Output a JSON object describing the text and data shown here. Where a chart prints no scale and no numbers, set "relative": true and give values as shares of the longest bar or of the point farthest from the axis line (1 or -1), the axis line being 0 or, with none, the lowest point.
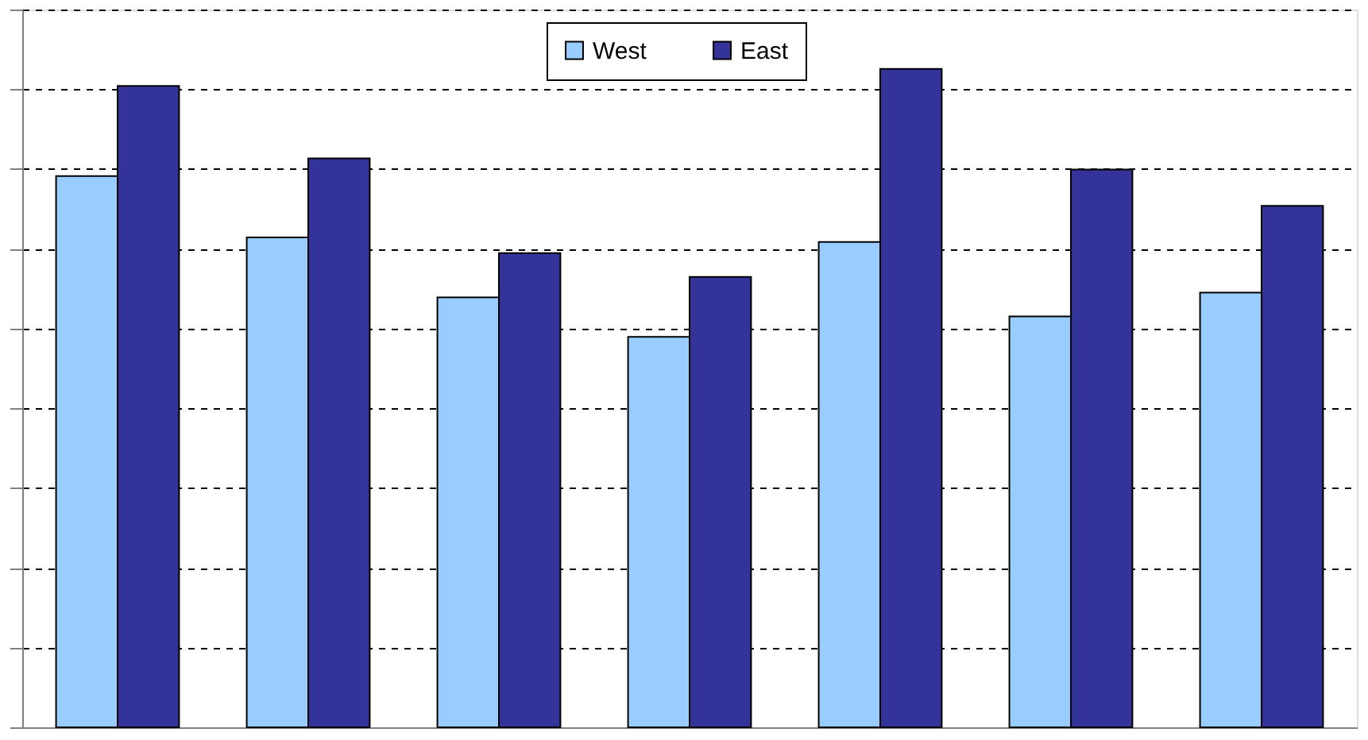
{
  "chart_data": {
    "type": "bar",
    "relative": true,
    "categories": [
      null,
      null,
      null,
      null,
      null,
      null,
      null
    ],
    "series": [
      {
        "name": "West",
        "color": "#99ccff",
        "values": [
          0.837,
          0.744,
          0.653,
          0.593,
          0.737,
          0.624,
          0.66
        ]
      },
      {
        "name": "East",
        "color": "#333399",
        "values": [
          0.974,
          0.864,
          0.72,
          0.684,
          1,
          0.847,
          0.792
        ]
      }
    ],
    "grid": "y",
    "legend": "top",
    "tick_labels": false
  }
}
